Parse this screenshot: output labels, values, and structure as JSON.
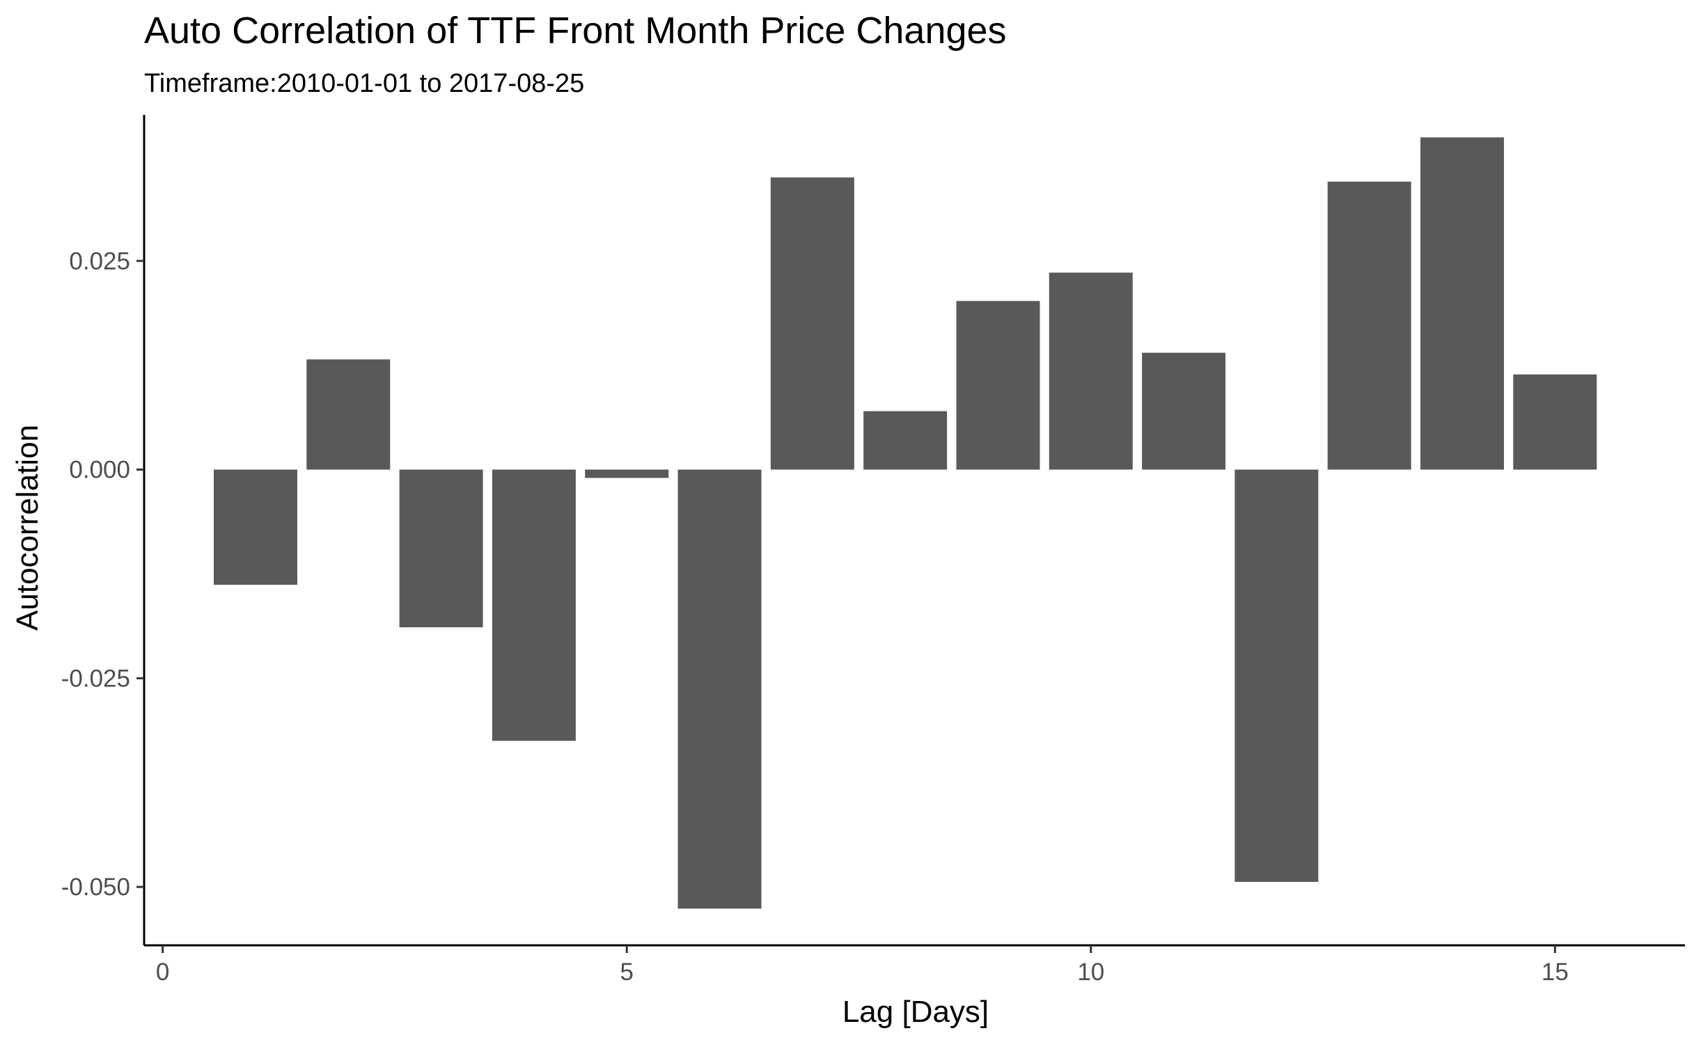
{
  "chart_data": {
    "type": "bar",
    "title": "Auto Correlation of TTF Front Month Price Changes",
    "subtitle": "Timeframe:2010-01-01 to 2017-08-25",
    "xlabel": "Lag [Days]",
    "ylabel": "Autocorrelation",
    "x": [
      1,
      2,
      3,
      4,
      5,
      6,
      7,
      8,
      9,
      10,
      11,
      12,
      13,
      14,
      15
    ],
    "values": [
      -0.0138,
      0.0132,
      -0.0189,
      -0.0325,
      -0.001,
      -0.0526,
      0.035,
      0.007,
      0.0202,
      0.0236,
      0.014,
      -0.0494,
      0.0345,
      0.0398,
      0.0114
    ],
    "xlim": [
      -0.2,
      16.4
    ],
    "ylim": [
      -0.057,
      0.0425
    ],
    "x_ticks": [
      0,
      5,
      10,
      15
    ],
    "x_tick_labels": [
      "0",
      "5",
      "10",
      "15"
    ],
    "y_ticks": [
      -0.05,
      -0.025,
      0,
      0.025
    ],
    "y_tick_labels": [
      "-0.050",
      "-0.025",
      "0.000",
      "0.025"
    ],
    "bar_color": "#595959",
    "grid": false,
    "legend": "none"
  }
}
